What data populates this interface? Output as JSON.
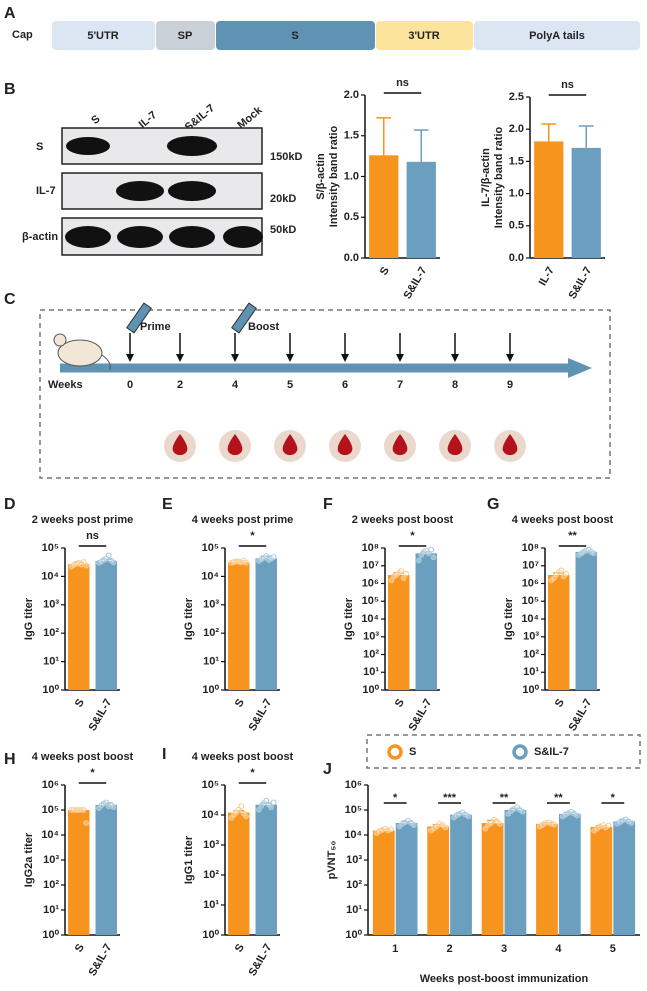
{
  "panels": [
    "A",
    "B",
    "C",
    "D",
    "E",
    "F",
    "G",
    "H",
    "I",
    "J"
  ],
  "construct": {
    "cap": "Cap",
    "segments": [
      "5'UTR",
      "SP",
      "S",
      "3'UTR",
      "PolyA tails"
    ]
  },
  "blot": {
    "lanes": [
      "S",
      "IL-7",
      "S&IL-7",
      "Mock"
    ],
    "rows": [
      "S",
      "IL-7",
      "β-actin"
    ],
    "sizes": [
      "150kD",
      "20kD",
      "50kD"
    ]
  },
  "timeline": {
    "axis_label": "Weeks",
    "weeks": [
      0,
      2,
      4,
      5,
      6,
      7,
      8,
      9
    ],
    "prime": "Prime",
    "boost": "Boost"
  },
  "chart_data": [
    {
      "type": "bar",
      "ylabel": [
        "S/β-actin",
        "Intensity band ratio"
      ],
      "categories": [
        "S",
        "S&IL-7"
      ],
      "values": [
        1.26,
        1.18
      ],
      "errors": [
        0.46,
        0.39
      ],
      "colors": [
        "#f7941d",
        "#6a9fbf"
      ],
      "ylim": [
        0,
        2.0
      ],
      "yticks": [
        {
          "value": 0,
          "label": "0.0"
        },
        0.5,
        {
          "value": 1,
          "label": "1.0"
        },
        1.5,
        {
          "value": 2,
          "label": "2.0"
        }
      ],
      "annotations": [
        "ns"
      ]
    },
    {
      "type": "bar",
      "ylabel": [
        "IL-7/β-actin",
        "Intensity band ratio"
      ],
      "categories": [
        "IL-7",
        "S&IL-7"
      ],
      "values": [
        1.81,
        1.71
      ],
      "errors": [
        0.27,
        0.34
      ],
      "colors": [
        "#f7941d",
        "#6a9fbf"
      ],
      "ylim": [
        0,
        2.5
      ],
      "yticks": [
        {
          "value": 0,
          "label": "0.0"
        },
        0.5,
        {
          "value": 1,
          "label": "1.0"
        },
        1.5,
        {
          "value": 2,
          "label": "2.0"
        },
        2.5
      ],
      "annotations": [
        "ns"
      ]
    },
    {
      "type": "bar",
      "log": true,
      "title": "2 weeks post prime",
      "ylabel": "IgG titer",
      "categories": [
        "S",
        "S&IL-7"
      ],
      "values": [
        27000,
        35000
      ],
      "errors": [
        4000,
        5000
      ],
      "colors": [
        "#f7941d",
        "#6a9fbf"
      ],
      "points": [
        [
          22000,
          25000,
          28000,
          30000,
          26000,
          32000,
          24000
        ],
        [
          30000,
          33000,
          38000,
          42000,
          55000,
          36000,
          31000
        ]
      ],
      "ylim": [
        1,
        100000
      ],
      "yticks": [
        {
          "value": 1,
          "label": "10⁰"
        },
        {
          "value": 10,
          "label": "10¹"
        },
        {
          "value": 100,
          "label": "10²"
        },
        {
          "value": 1000,
          "label": "10³"
        },
        {
          "value": 10000,
          "label": "10⁴"
        },
        {
          "value": 100000,
          "label": "10⁵"
        }
      ],
      "annotations": [
        "ns"
      ]
    },
    {
      "type": "bar",
      "log": true,
      "title": "4 weeks post prime",
      "ylabel": "IgG titer",
      "categories": [
        "S",
        "S&IL-7"
      ],
      "values": [
        32000,
        43000
      ],
      "errors": [
        3000,
        8000
      ],
      "colors": [
        "#f7941d",
        "#6a9fbf"
      ],
      "points": [
        [
          30000,
          32000,
          34000,
          33000,
          31000,
          35000,
          30000
        ],
        [
          35000,
          40000,
          45000,
          52000,
          38000,
          42000,
          48000
        ]
      ],
      "ylim": [
        1,
        100000
      ],
      "yticks": [
        {
          "value": 1,
          "label": "10⁰"
        },
        {
          "value": 10,
          "label": "10¹"
        },
        {
          "value": 100,
          "label": "10²"
        },
        {
          "value": 1000,
          "label": "10³"
        },
        {
          "value": 10000,
          "label": "10⁴"
        },
        {
          "value": 100000,
          "label": "10⁵"
        }
      ],
      "annotations": [
        "*"
      ]
    },
    {
      "type": "bar",
      "log": true,
      "title": "2 weeks post boost",
      "ylabel": "IgG titer",
      "categories": [
        "S",
        "S&IL-7"
      ],
      "values": [
        3000000,
        50000000
      ],
      "errors": [
        1000000,
        10000000
      ],
      "colors": [
        "#f7941d",
        "#6a9fbf"
      ],
      "points": [
        [
          1500000,
          2500000,
          3000000,
          4000000,
          5000000,
          2000000,
          3500000
        ],
        [
          20000000,
          40000000,
          60000000,
          70000000,
          50000000,
          80000000,
          30000000
        ]
      ],
      "ylim": [
        1,
        100000000
      ],
      "yticks": [
        {
          "value": 1,
          "label": "10⁰"
        },
        {
          "value": 10,
          "label": "10¹"
        },
        {
          "value": 100,
          "label": "10²"
        },
        {
          "value": 1000,
          "label": "10³"
        },
        {
          "value": 10000,
          "label": "10⁴"
        },
        {
          "value": 100000,
          "label": "10⁵"
        },
        {
          "value": 1000000,
          "label": "10⁶"
        },
        {
          "value": 10000000,
          "label": "10⁷"
        },
        {
          "value": 100000000,
          "label": "10⁸"
        }
      ],
      "annotations": [
        "*"
      ]
    },
    {
      "type": "bar",
      "log": true,
      "title": "4 weeks post boost",
      "ylabel": "IgG titer",
      "categories": [
        "S",
        "S&IL-7"
      ],
      "values": [
        3000000,
        60000000
      ],
      "errors": [
        1000000,
        5000000
      ],
      "colors": [
        "#f7941d",
        "#6a9fbf"
      ],
      "points": [
        [
          1500000,
          2000000,
          3000000,
          4500000,
          5500000,
          2500000,
          3500000
        ],
        [
          40000000,
          50000000,
          60000000,
          70000000,
          80000000,
          60000000,
          50000000
        ]
      ],
      "ylim": [
        1,
        100000000
      ],
      "yticks": [
        {
          "value": 1,
          "label": "10⁰"
        },
        {
          "value": 10,
          "label": "10¹"
        },
        {
          "value": 100,
          "label": "10²"
        },
        {
          "value": 1000,
          "label": "10³"
        },
        {
          "value": 10000,
          "label": "10⁴"
        },
        {
          "value": 100000,
          "label": "10⁵"
        },
        {
          "value": 1000000,
          "label": "10⁶"
        },
        {
          "value": 10000000,
          "label": "10⁷"
        },
        {
          "value": 100000000,
          "label": "10⁸"
        }
      ],
      "annotations": [
        "**"
      ]
    },
    {
      "type": "bar",
      "log": true,
      "title": "4 weeks post boost",
      "ylabel": "IgG2a titer",
      "categories": [
        "S",
        "S&IL-7"
      ],
      "values": [
        100000,
        160000
      ],
      "errors": [
        2000,
        30000
      ],
      "colors": [
        "#f7941d",
        "#6a9fbf"
      ],
      "points": [
        [
          100000,
          100000,
          100000,
          100000,
          100000,
          100000,
          30000
        ],
        [
          120000,
          150000,
          180000,
          200000,
          140000,
          160000,
          130000
        ]
      ],
      "ylim": [
        1,
        1000000
      ],
      "yticks": [
        {
          "value": 1,
          "label": "10⁰"
        },
        {
          "value": 10,
          "label": "10¹"
        },
        {
          "value": 100,
          "label": "10²"
        },
        {
          "value": 1000,
          "label": "10³"
        },
        {
          "value": 10000,
          "label": "10⁴"
        },
        {
          "value": 100000,
          "label": "10⁵"
        },
        {
          "value": 1000000,
          "label": "10⁶"
        }
      ],
      "annotations": [
        "*"
      ]
    },
    {
      "type": "bar",
      "log": true,
      "title": "4 weeks post boost",
      "ylabel": "IgG1 titer",
      "categories": [
        "S",
        "S&IL-7"
      ],
      "values": [
        12000,
        22000
      ],
      "errors": [
        2000,
        3000
      ],
      "colors": [
        "#f7941d",
        "#6a9fbf"
      ],
      "points": [
        [
          8000,
          10000,
          12000,
          15000,
          20000,
          11000,
          9000
        ],
        [
          15000,
          20000,
          25000,
          30000,
          22000,
          18000,
          26000
        ]
      ],
      "ylim": [
        1,
        100000
      ],
      "yticks": [
        {
          "value": 1,
          "label": "10⁰"
        },
        {
          "value": 10,
          "label": "10¹"
        },
        {
          "value": 100,
          "label": "10²"
        },
        {
          "value": 1000,
          "label": "10³"
        },
        {
          "value": 10000,
          "label": "10⁴"
        },
        {
          "value": 100000,
          "label": "10⁵"
        }
      ],
      "annotations": [
        "*"
      ]
    },
    {
      "type": "bar",
      "log": true,
      "ylabel": "pVNT₅₀",
      "xlabel": "Weeks post-boost immunization",
      "categories": [
        "1",
        "2",
        "3",
        "4",
        "5"
      ],
      "series": [
        {
          "name": "S",
          "color": "#f7941d",
          "values": [
            15000,
            22000,
            30000,
            28000,
            21000
          ],
          "errors": [
            2000,
            4000,
            8000,
            3000,
            2000
          ],
          "points": [
            [
              12000,
              14000,
              16000,
              18000,
              15000,
              17000
            ],
            [
              15000,
              18000,
              22000,
              28000,
              25000,
              20000
            ],
            [
              18000,
              25000,
              30000,
              40000,
              35000,
              28000
            ],
            [
              22000,
              25000,
              30000,
              32000,
              28000,
              26000
            ],
            [
              15000,
              18000,
              22000,
              25000,
              20000,
              24000
            ]
          ]
        },
        {
          "name": "S&IL-7",
          "color": "#6a9fbf",
          "values": [
            30000,
            65000,
            100000,
            70000,
            35000
          ],
          "errors": [
            5000,
            10000,
            15000,
            10000,
            5000
          ],
          "points": [
            [
              22000,
              28000,
              32000,
              38000,
              30000,
              25000
            ],
            [
              50000,
              60000,
              70000,
              80000,
              65000,
              55000
            ],
            [
              70000,
              90000,
              110000,
              130000,
              100000,
              85000
            ],
            [
              55000,
              65000,
              75000,
              85000,
              70000,
              60000
            ],
            [
              28000,
              32000,
              38000,
              42000,
              35000,
              30000
            ]
          ]
        }
      ],
      "ylim": [
        1,
        1000000
      ],
      "yticks": [
        {
          "value": 1,
          "label": "10⁰"
        },
        {
          "value": 10,
          "label": "10¹"
        },
        {
          "value": 100,
          "label": "10²"
        },
        {
          "value": 1000,
          "label": "10³"
        },
        {
          "value": 10000,
          "label": "10⁴"
        },
        {
          "value": 100000,
          "label": "10⁵"
        },
        {
          "value": 1000000,
          "label": "10⁶"
        }
      ],
      "annotations": [
        "*",
        "***",
        "**",
        "**",
        "*"
      ]
    }
  ]
}
